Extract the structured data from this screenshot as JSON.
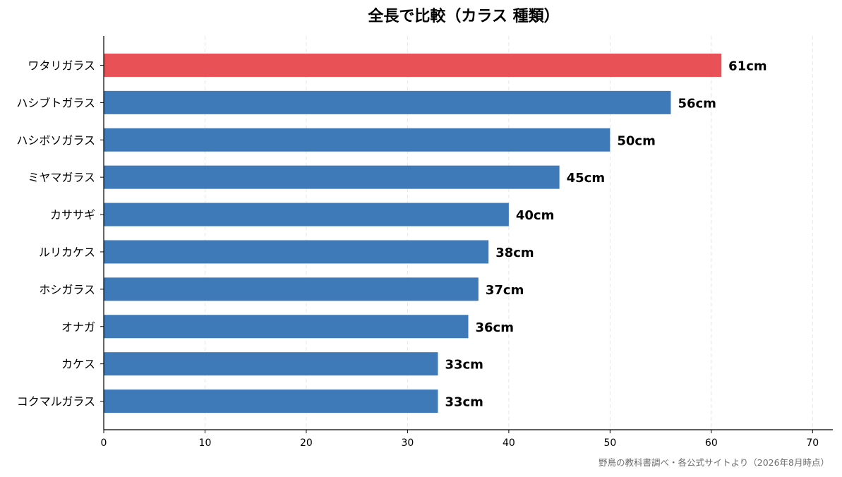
{
  "chart_data": {
    "type": "bar",
    "orientation": "horizontal",
    "title": "全長で比較（カラス 種類）",
    "xlabel": "",
    "ylabel": "",
    "categories": [
      "ワタリガラス",
      "ハシブトガラス",
      "ハシボソガラス",
      "ミヤマガラス",
      "カササギ",
      "ルリカケス",
      "ホシガラス",
      "オナガ",
      "カケス",
      "コクマルガラス"
    ],
    "values": [
      61,
      56,
      50,
      45,
      40,
      38,
      37,
      36,
      33,
      33
    ],
    "value_labels": [
      "61cm",
      "56cm",
      "50cm",
      "45cm",
      "40cm",
      "38cm",
      "37cm",
      "36cm",
      "33cm",
      "33cm"
    ],
    "highlight_index": 0,
    "xlim": [
      0,
      72
    ],
    "xticks": [
      0,
      10,
      20,
      30,
      40,
      50,
      60,
      70
    ],
    "grid": "vertical dashed",
    "colors": {
      "bar": "#3e79b8",
      "highlight": "#e85155",
      "grid": "#e6e6e6",
      "axis": "#000000",
      "label": "#000000",
      "source": "#6d6d6d"
    },
    "source": "野鳥の教科書調べ・各公式サイトより（2026年8月時点）"
  }
}
